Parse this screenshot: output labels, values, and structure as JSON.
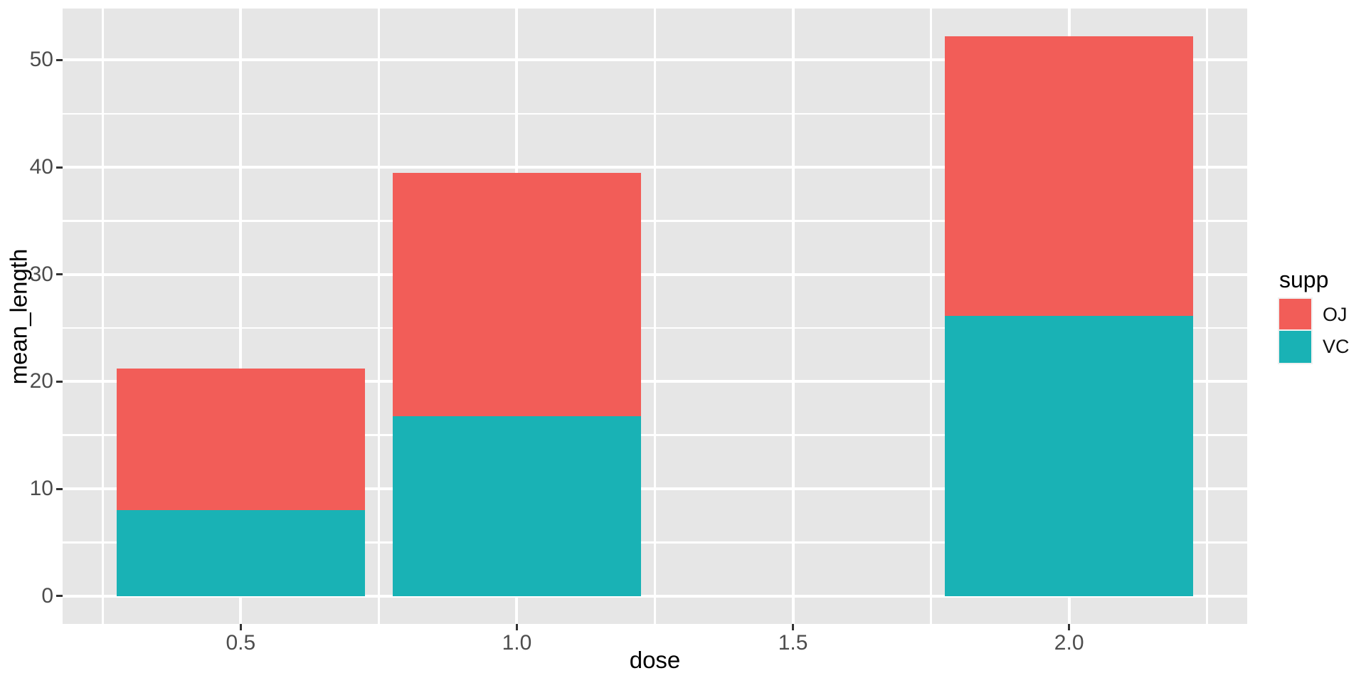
{
  "chart_data": {
    "type": "bar",
    "stacked": true,
    "title": "",
    "xlabel": "dose",
    "ylabel": "mean_length",
    "x": [
      0.5,
      1.0,
      2.0
    ],
    "bar_width": 0.45,
    "series": [
      {
        "name": "OJ",
        "color": "#F25D58",
        "values": [
          13.23,
          22.7,
          26.06
        ]
      },
      {
        "name": "VC",
        "color": "#19B2B5",
        "values": [
          7.98,
          16.77,
          26.14
        ]
      }
    ],
    "stack_bottom_to_top": [
      "VC",
      "OJ"
    ],
    "stack_totals": [
      21.21,
      39.47,
      52.2
    ],
    "xlim": [
      0.1775,
      2.3225
    ],
    "ylim": [
      -2.61,
      54.81
    ],
    "x_ticks": [
      0.5,
      1.0,
      1.5,
      2.0
    ],
    "x_tick_labels": [
      "0.5",
      "1.0",
      "1.5",
      "2.0"
    ],
    "x_minor_ticks": [
      0.25,
      0.75,
      1.25,
      1.75,
      2.25
    ],
    "y_ticks": [
      0,
      10,
      20,
      30,
      40,
      50
    ],
    "y_tick_labels": [
      "0",
      "10",
      "20",
      "30",
      "40",
      "50"
    ],
    "y_minor_ticks": [
      5,
      15,
      25,
      35,
      45
    ],
    "grid": true,
    "legend": {
      "title": "supp",
      "position": "right",
      "entries": [
        {
          "label": "OJ",
          "color": "#F25D58"
        },
        {
          "label": "VC",
          "color": "#19B2B5"
        }
      ]
    },
    "colors": {
      "panel_background": "#E6E6E6",
      "gridline": "#FFFFFF",
      "axis_text": "#4D4D4D",
      "axis_title": "#000000",
      "tick_mark": "#333333",
      "figure_background": "#FFFFFF"
    }
  }
}
